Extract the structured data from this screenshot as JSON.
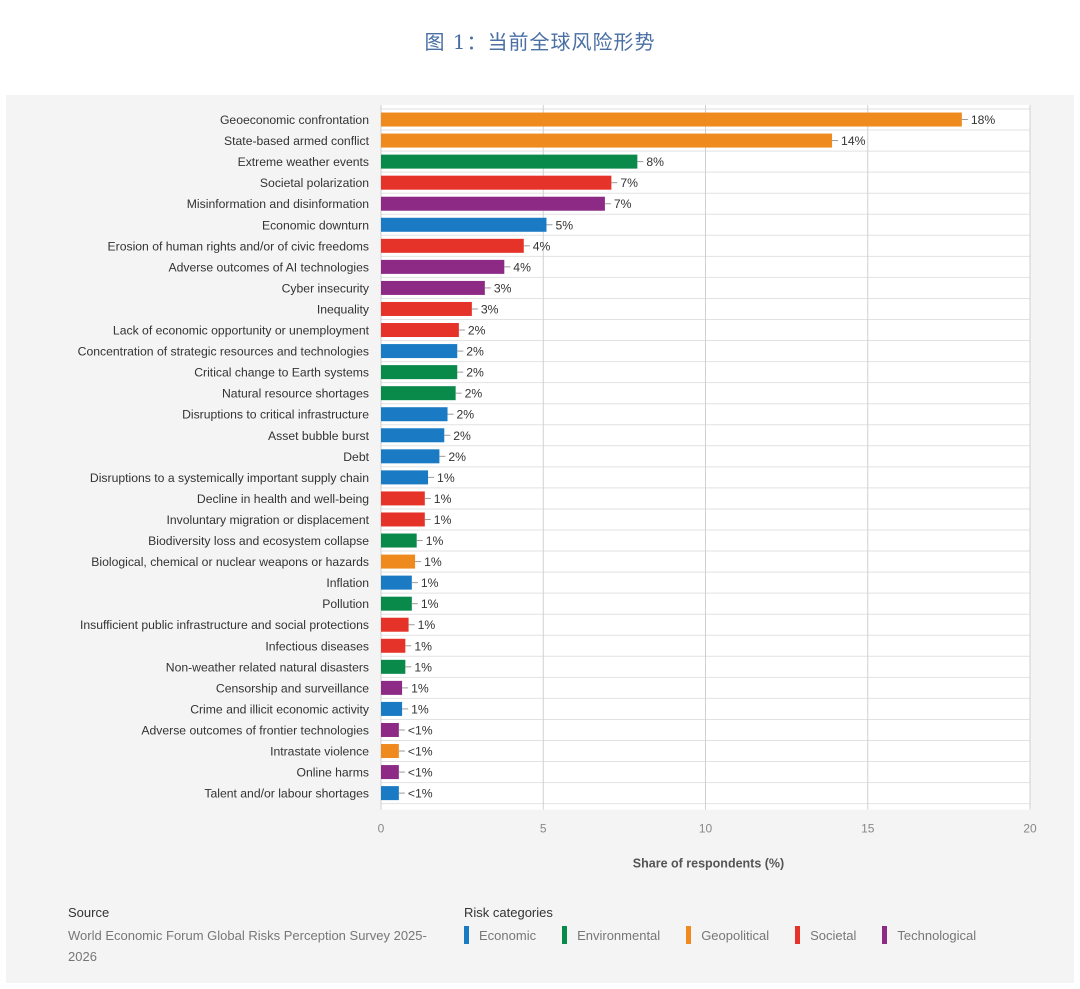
{
  "figure_title": "图 1：当前全球风险形势",
  "source": {
    "heading": "Source",
    "text": "World Economic Forum Global Risks Perception Survey 2025-2026"
  },
  "legend": {
    "heading": "Risk categories",
    "items": [
      {
        "label": "Economic",
        "color": "#1a7ac4"
      },
      {
        "label": "Environmental",
        "color": "#0a8a4a"
      },
      {
        "label": "Geopolitical",
        "color": "#ef8a1f"
      },
      {
        "label": "Societal",
        "color": "#e63329"
      },
      {
        "label": "Technological",
        "color": "#8c2a86"
      }
    ]
  },
  "chart_data": {
    "type": "bar",
    "orientation": "horizontal",
    "xlabel": "Share of respondents (%)",
    "xlim": [
      0,
      20
    ],
    "xticks": [
      0,
      5,
      10,
      15,
      20
    ],
    "grid": true,
    "legend_position": "bottom",
    "categories": [
      "Geoeconomic confrontation",
      "State-based armed conflict",
      "Extreme weather events",
      "Societal polarization",
      "Misinformation and disinformation",
      "Economic downturn",
      "Erosion of human rights and/or of civic freedoms",
      "Adverse outcomes of AI technologies",
      "Cyber insecurity",
      "Inequality",
      "Lack of economic opportunity or unemployment",
      "Concentration of strategic resources and technologies",
      "Critical change to Earth systems",
      "Natural resource shortages",
      "Disruptions to critical infrastructure",
      "Asset bubble burst",
      "Debt",
      "Disruptions to a systemically important supply chain",
      "Decline in health and well-being",
      "Involuntary migration or displacement",
      "Biodiversity loss and ecosystem collapse",
      "Biological, chemical or nuclear weapons or hazards",
      "Inflation",
      "Pollution",
      "Insufficient public infrastructure and social protections",
      "Infectious diseases",
      "Non-weather related natural disasters",
      "Censorship and surveillance",
      "Crime and illicit economic activity",
      "Adverse outcomes of frontier technologies",
      "Intrastate violence",
      "Online harms",
      "Talent and/or labour shortages"
    ],
    "values": [
      17.9,
      13.9,
      7.9,
      7.1,
      6.9,
      5.1,
      4.4,
      3.8,
      3.2,
      2.8,
      2.4,
      2.35,
      2.35,
      2.3,
      2.05,
      1.95,
      1.8,
      1.45,
      1.35,
      1.35,
      1.1,
      1.05,
      0.95,
      0.95,
      0.85,
      0.75,
      0.75,
      0.65,
      0.65,
      0.55,
      0.55,
      0.55,
      0.55
    ],
    "value_labels": [
      "18%",
      "14%",
      "8%",
      "7%",
      "7%",
      "5%",
      "4%",
      "4%",
      "3%",
      "3%",
      "2%",
      "2%",
      "2%",
      "2%",
      "2%",
      "2%",
      "2%",
      "1%",
      "1%",
      "1%",
      "1%",
      "1%",
      "1%",
      "1%",
      "1%",
      "1%",
      "1%",
      "1%",
      "1%",
      "<1%",
      "<1%",
      "<1%",
      "<1%"
    ],
    "category_group": [
      "Geopolitical",
      "Geopolitical",
      "Environmental",
      "Societal",
      "Technological",
      "Economic",
      "Societal",
      "Technological",
      "Technological",
      "Societal",
      "Societal",
      "Economic",
      "Environmental",
      "Environmental",
      "Economic",
      "Economic",
      "Economic",
      "Economic",
      "Societal",
      "Societal",
      "Environmental",
      "Geopolitical",
      "Economic",
      "Environmental",
      "Societal",
      "Societal",
      "Environmental",
      "Technological",
      "Economic",
      "Technological",
      "Geopolitical",
      "Technological",
      "Economic"
    ]
  }
}
